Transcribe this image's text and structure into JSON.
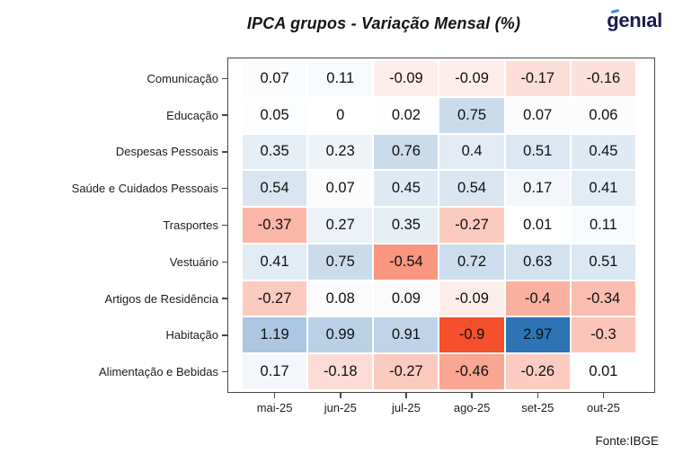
{
  "header": {
    "title": "IPCA grupos - Variação Mensal (%)",
    "logo_text": "genial",
    "logo_display": "genıal"
  },
  "footer": {
    "source": "Fonte:IBGE"
  },
  "colors": {
    "positive_max": "#2e74b5",
    "negative_max": "#f4502b",
    "zero": "#ffffff",
    "logo_navy": "#1b1b4f",
    "logo_accent_blue": "#2f80ed",
    "axis_line": "#474747",
    "cell_text": "#101010"
  },
  "chart_data": {
    "type": "heatmap",
    "title": "IPCA grupos - Variação Mensal (%)",
    "x_categories": [
      "mai-25",
      "jun-25",
      "jul-25",
      "ago-25",
      "set-25",
      "out-25"
    ],
    "y_categories": [
      "Comunicação",
      "Educação",
      "Despesas Pessoais",
      "Saúde e Cuidados Pessoais",
      "Trasportes",
      "Vestuário",
      "Artigos de Residência",
      "Habitação",
      "Alimentação e Bebidas"
    ],
    "values": [
      [
        "0.07",
        "0.11",
        "-0.09",
        "-0.09",
        "-0.17",
        "-0.16"
      ],
      [
        "0.05",
        "0",
        "0.02",
        "0.75",
        "0.07",
        "0.06"
      ],
      [
        "0.35",
        "0.23",
        "0.76",
        "0.4",
        "0.51",
        "0.45"
      ],
      [
        "0.54",
        "0.07",
        "0.45",
        "0.54",
        "0.17",
        "0.41"
      ],
      [
        "-0.37",
        "0.27",
        "0.35",
        "-0.27",
        "0.01",
        "0.11"
      ],
      [
        "0.41",
        "0.75",
        "-0.54",
        "0.72",
        "0.63",
        "0.51"
      ],
      [
        "-0.27",
        "0.08",
        "0.09",
        "-0.09",
        "-0.4",
        "-0.34"
      ],
      [
        "1.19",
        "0.99",
        "0.91",
        "-0.9",
        "2.97",
        "-0.3"
      ],
      [
        "0.17",
        "-0.18",
        "-0.27",
        "-0.46",
        "-0.26",
        "0.01"
      ]
    ],
    "value_domain": [
      -0.9,
      2.97
    ],
    "color_scale": "diverging red-white-blue, negatives red (scaled to min), positives blue (scaled to max)",
    "legend": "none",
    "grid": "white gaps between tiles, dark gray panel border",
    "source": "Fonte:IBGE"
  }
}
